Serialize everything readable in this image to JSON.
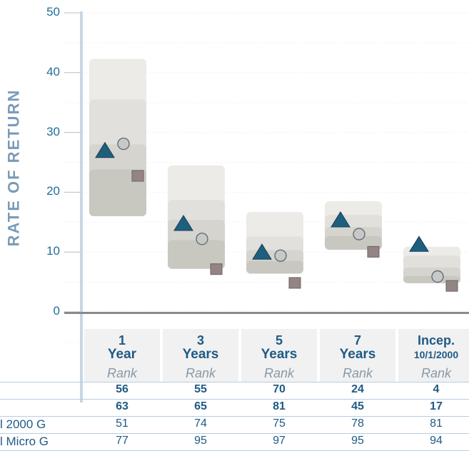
{
  "chart_data": {
    "type": "box",
    "ylabel": "RATE OF RETURN",
    "ylim": [
      0,
      50
    ],
    "yticks": [
      "0",
      "10",
      "20",
      "30",
      "40",
      "50"
    ],
    "categories": [
      {
        "line1": "1",
        "line2": "Year",
        "small": false
      },
      {
        "line1": "3",
        "line2": "Years",
        "small": false
      },
      {
        "line1": "5",
        "line2": "Years",
        "small": false
      },
      {
        "line1": "7",
        "line2": "Years",
        "small": false
      },
      {
        "line1": "Incep.",
        "line2": "10/1/2000",
        "small": true
      }
    ],
    "bands": [
      [
        16,
        23.8,
        28,
        35.5,
        42.3
      ],
      [
        7.2,
        12,
        15.4,
        18.7,
        24.5
      ],
      [
        6.4,
        8.5,
        10.3,
        12.6,
        16.7
      ],
      [
        10.4,
        12.7,
        14.2,
        16.2,
        18.5
      ],
      [
        4.8,
        6,
        7.4,
        9.4,
        10.9
      ]
    ],
    "series": [
      {
        "marker": "triangle",
        "values": [
          27,
          14.8,
          10,
          15.4,
          11.3
        ]
      },
      {
        "marker": "circle",
        "values": [
          28.1,
          12.2,
          9.4,
          13,
          5.9
        ]
      },
      {
        "marker": "square",
        "values": [
          22.8,
          7.2,
          4.9,
          10.1,
          4.4
        ]
      }
    ],
    "colors": {
      "triangle": "#1f5f7e",
      "circle": "#c8c8c8",
      "square": "#948585",
      "bands": [
        "#ecebe8",
        "#e1e0dc",
        "#d5d4ce",
        "#c8c7c0"
      ],
      "axis": "#8a8a8a",
      "yaxis_line": "#c7d6e3",
      "tick_text": "#1f6f9a",
      "header_text": "#1f5a86"
    }
  },
  "table": {
    "rank_label": "Rank",
    "rows": [
      {
        "label": "",
        "bold": true,
        "values": [
          "56",
          "55",
          "70",
          "24",
          "4"
        ]
      },
      {
        "label": "",
        "bold": true,
        "values": [
          "63",
          "65",
          "81",
          "45",
          "17"
        ]
      },
      {
        "label": "l 2000 G",
        "bold": false,
        "values": [
          "51",
          "74",
          "75",
          "78",
          "81"
        ]
      },
      {
        "label": "l Micro G",
        "bold": false,
        "values": [
          "77",
          "95",
          "97",
          "95",
          "94"
        ]
      }
    ]
  }
}
